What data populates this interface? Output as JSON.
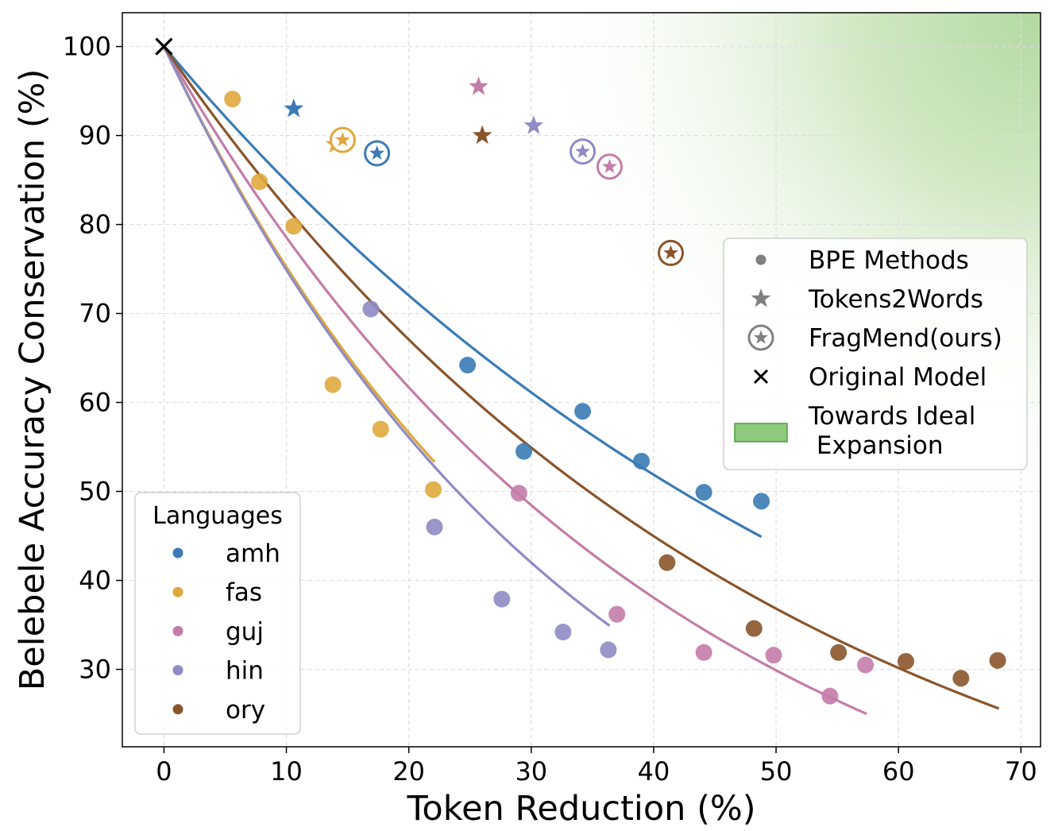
{
  "chart_data": {
    "type": "scatter",
    "xlabel": "Token Reduction (%)",
    "ylabel": "Belebele Accuracy Conservation (%)",
    "xlim": [
      -3.4,
      71.6
    ],
    "ylim": [
      21.3,
      103.8
    ],
    "x_ticks": [
      "0",
      "10",
      "20",
      "30",
      "40",
      "50",
      "60",
      "70"
    ],
    "y_ticks": [
      "30",
      "40",
      "50",
      "60",
      "70",
      "80",
      "90",
      "100"
    ],
    "grid": true,
    "languages_title": "Languages",
    "languages_legend_placement": "lower-left",
    "methods_legend_placement": "right",
    "series": [
      {
        "name": "amh",
        "color": "#3a7bb5",
        "bpe": [
          [
            24.8,
            64.2
          ],
          [
            29.4,
            54.5
          ],
          [
            34.2,
            59.0
          ],
          [
            39.0,
            53.4
          ],
          [
            44.1,
            49.9
          ],
          [
            48.8,
            48.9
          ]
        ],
        "tokens2words": [
          10.6,
          93.0
        ],
        "fragmend": [
          17.4,
          88.0
        ],
        "curve": {
          "x_end": 48.8,
          "y_end": 44.9
        }
      },
      {
        "name": "fas",
        "color": "#e0a83c",
        "bpe": [
          [
            5.6,
            94.1
          ],
          [
            7.8,
            84.8
          ],
          [
            10.6,
            79.8
          ],
          [
            13.8,
            62.0
          ],
          [
            17.7,
            57.0
          ],
          [
            22.0,
            50.2
          ]
        ],
        "tokens2words": [
          14.0,
          89.0
        ],
        "fragmend": [
          14.6,
          89.5
        ],
        "curve": {
          "x_end": 22.1,
          "y_end": 53.3
        }
      },
      {
        "name": "guj",
        "color": "#c47ca8",
        "bpe": [
          [
            29.0,
            49.8
          ],
          [
            37.0,
            36.2
          ],
          [
            44.1,
            31.9
          ],
          [
            49.8,
            31.6
          ],
          [
            54.4,
            27.0
          ],
          [
            57.3,
            30.5
          ]
        ],
        "tokens2words": [
          25.7,
          95.5
        ],
        "fragmend": [
          36.4,
          86.5
        ],
        "curve": {
          "x_end": 57.4,
          "y_end": 25.0
        }
      },
      {
        "name": "hin",
        "color": "#8f8bc4",
        "bpe": [
          [
            16.9,
            70.5
          ],
          [
            22.1,
            46.0
          ],
          [
            27.6,
            37.9
          ],
          [
            32.6,
            34.2
          ],
          [
            36.3,
            32.2
          ]
        ],
        "tokens2words": [
          30.2,
          91.1
        ],
        "fragmend": [
          34.2,
          88.2
        ],
        "curve": {
          "x_end": 36.4,
          "y_end": 34.9
        }
      },
      {
        "name": "ory",
        "color": "#8a552b",
        "bpe": [
          [
            41.1,
            42.0
          ],
          [
            48.2,
            34.6
          ],
          [
            55.1,
            31.9
          ],
          [
            60.6,
            30.9
          ],
          [
            65.1,
            29.0
          ],
          [
            68.1,
            31.0
          ]
        ],
        "tokens2words": [
          26.0,
          90.0
        ],
        "fragmend": [
          41.4,
          76.8
        ],
        "curve": {
          "x_end": 68.2,
          "y_end": 25.6
        }
      }
    ],
    "original_model": {
      "x": 0,
      "y": 100
    },
    "method_legend": [
      {
        "label": "BPE Methods",
        "icon": "circle"
      },
      {
        "label": "Tokens2Words",
        "icon": "star"
      },
      {
        "label": "FragMend(ours)",
        "icon": "circled-star"
      },
      {
        "label": "Original Model",
        "icon": "x-mark"
      },
      {
        "label": "Towards Ideal",
        "label2": " Expansion",
        "icon": "green-patch"
      }
    ],
    "ideal_color": "#8ec97d"
  }
}
